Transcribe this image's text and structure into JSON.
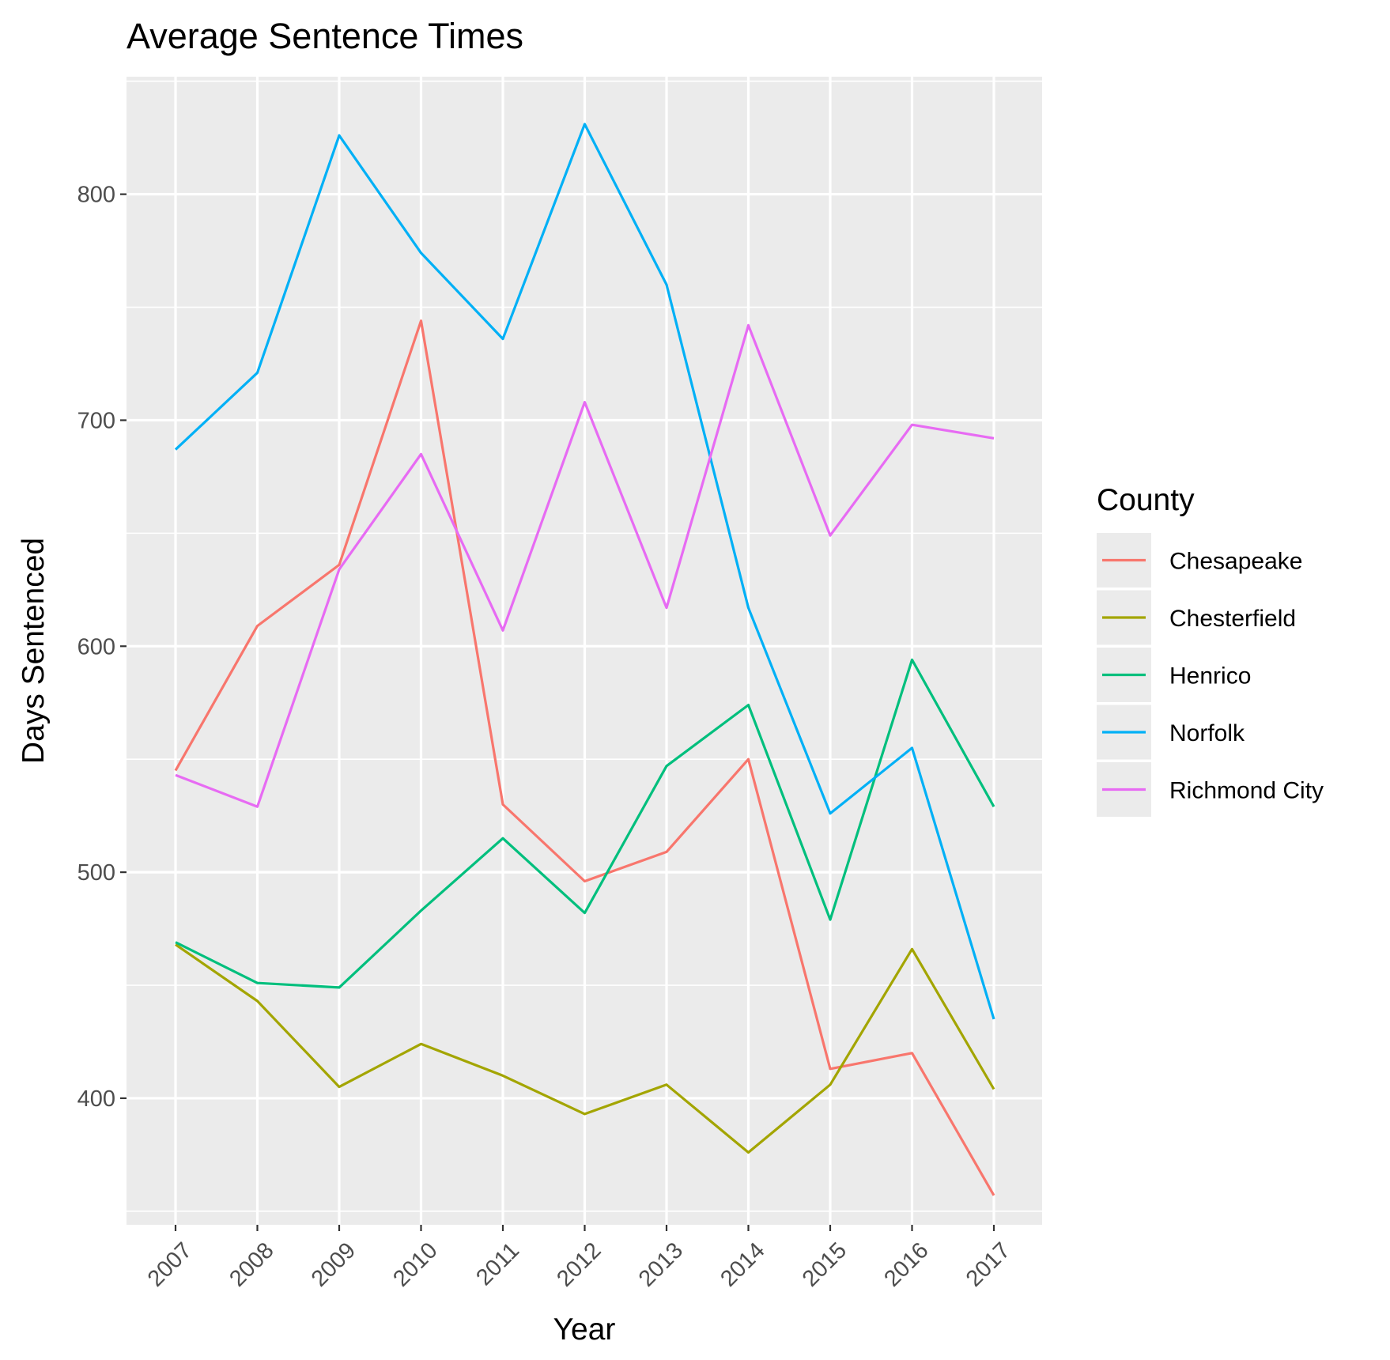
{
  "chart_data": {
    "type": "line",
    "title": "Average Sentence Times",
    "xlabel": "Year",
    "ylabel": "Days Sentenced",
    "x": [
      2007,
      2008,
      2009,
      2010,
      2011,
      2012,
      2013,
      2014,
      2015,
      2016,
      2017
    ],
    "xtick_labels": [
      "2007",
      "2008",
      "2009",
      "2010",
      "2011",
      "2012",
      "2013",
      "2014",
      "2015",
      "2016",
      "2017"
    ],
    "yticks": [
      400,
      500,
      600,
      700,
      800
    ],
    "ylim": [
      344,
      852
    ],
    "grid": true,
    "legend": {
      "title": "County",
      "placement": "right"
    },
    "series": [
      {
        "name": "Chesapeake",
        "color": "#F8766D",
        "values": [
          545,
          609,
          636,
          744,
          530,
          496,
          509,
          550,
          413,
          420,
          357
        ]
      },
      {
        "name": "Chesterfield",
        "color": "#A3A500",
        "values": [
          468,
          443,
          405,
          424,
          410,
          393,
          406,
          376,
          406,
          466,
          404
        ]
      },
      {
        "name": "Henrico",
        "color": "#00BF7D",
        "values": [
          469,
          451,
          449,
          483,
          515,
          482,
          547,
          574,
          479,
          594,
          529
        ]
      },
      {
        "name": "Norfolk",
        "color": "#00B0F6",
        "values": [
          687,
          721,
          826,
          774,
          736,
          831,
          760,
          617,
          526,
          555,
          435
        ]
      },
      {
        "name": "Richmond City",
        "color": "#E76BF3",
        "values": [
          543,
          529,
          634,
          685,
          607,
          708,
          617,
          742,
          649,
          698,
          692
        ]
      }
    ]
  }
}
